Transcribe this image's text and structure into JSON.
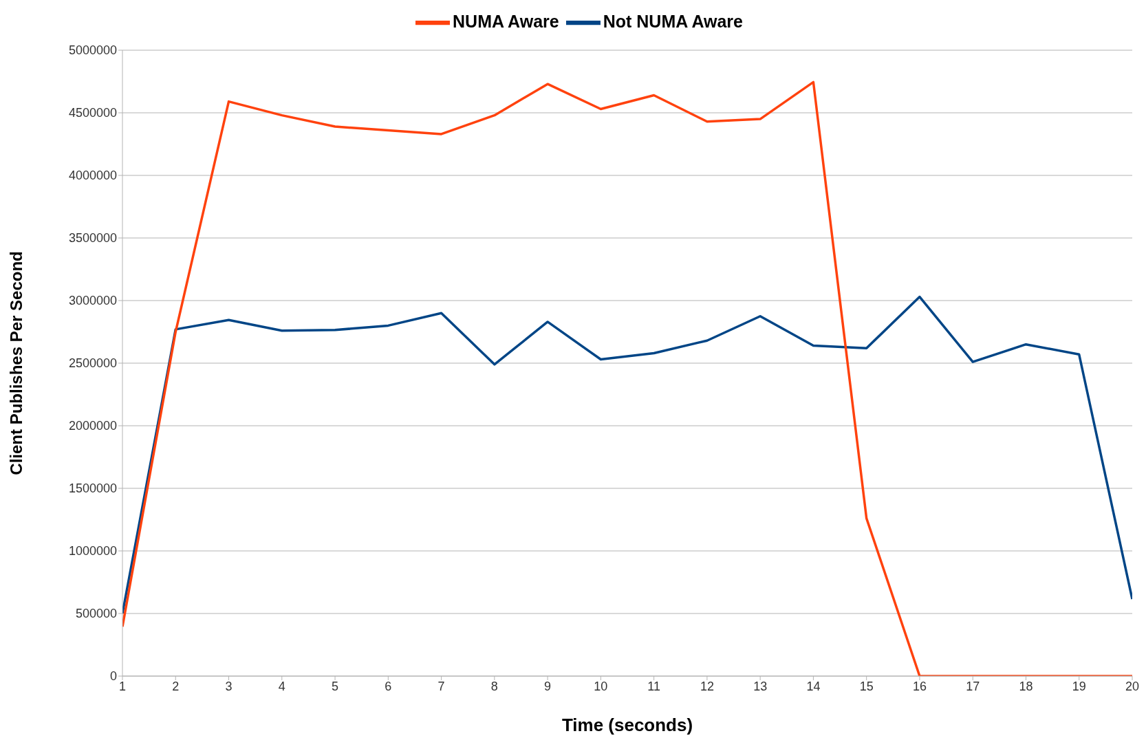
{
  "chart_data": {
    "type": "line",
    "xlabel": "Time (seconds)",
    "ylabel": "Client Publishes Per Second",
    "x": [
      1,
      2,
      3,
      4,
      5,
      6,
      7,
      8,
      9,
      10,
      11,
      12,
      13,
      14,
      15,
      16,
      17,
      18,
      19,
      20
    ],
    "series": [
      {
        "name": "Not NUMA Aware",
        "color": "#004586",
        "values": [
          500000,
          2770000,
          2845000,
          2760000,
          2765000,
          2800000,
          2900000,
          2490000,
          2830000,
          2530000,
          2580000,
          2680000,
          2875000,
          2640000,
          2620000,
          3030000,
          2510000,
          2650000,
          2570000,
          615000
        ]
      },
      {
        "name": "NUMA Aware",
        "color": "#ff420e",
        "values": [
          395000,
          2750000,
          4590000,
          4480000,
          4390000,
          4360000,
          4330000,
          4480000,
          4730000,
          4530000,
          4640000,
          4430000,
          4450000,
          4745000,
          1260000,
          0,
          0,
          0,
          0,
          0
        ]
      }
    ],
    "xlim": [
      1,
      20
    ],
    "xticks": [
      1,
      2,
      3,
      4,
      5,
      6,
      7,
      8,
      9,
      10,
      11,
      12,
      13,
      14,
      15,
      16,
      17,
      18,
      19,
      20
    ],
    "ylim": [
      0,
      5000000
    ],
    "yticks": [
      0,
      500000,
      1000000,
      1500000,
      2000000,
      2500000,
      3000000,
      3500000,
      4000000,
      4500000,
      5000000
    ],
    "grid": "y",
    "legend": "top",
    "marker": "none",
    "line_style": "solid"
  }
}
